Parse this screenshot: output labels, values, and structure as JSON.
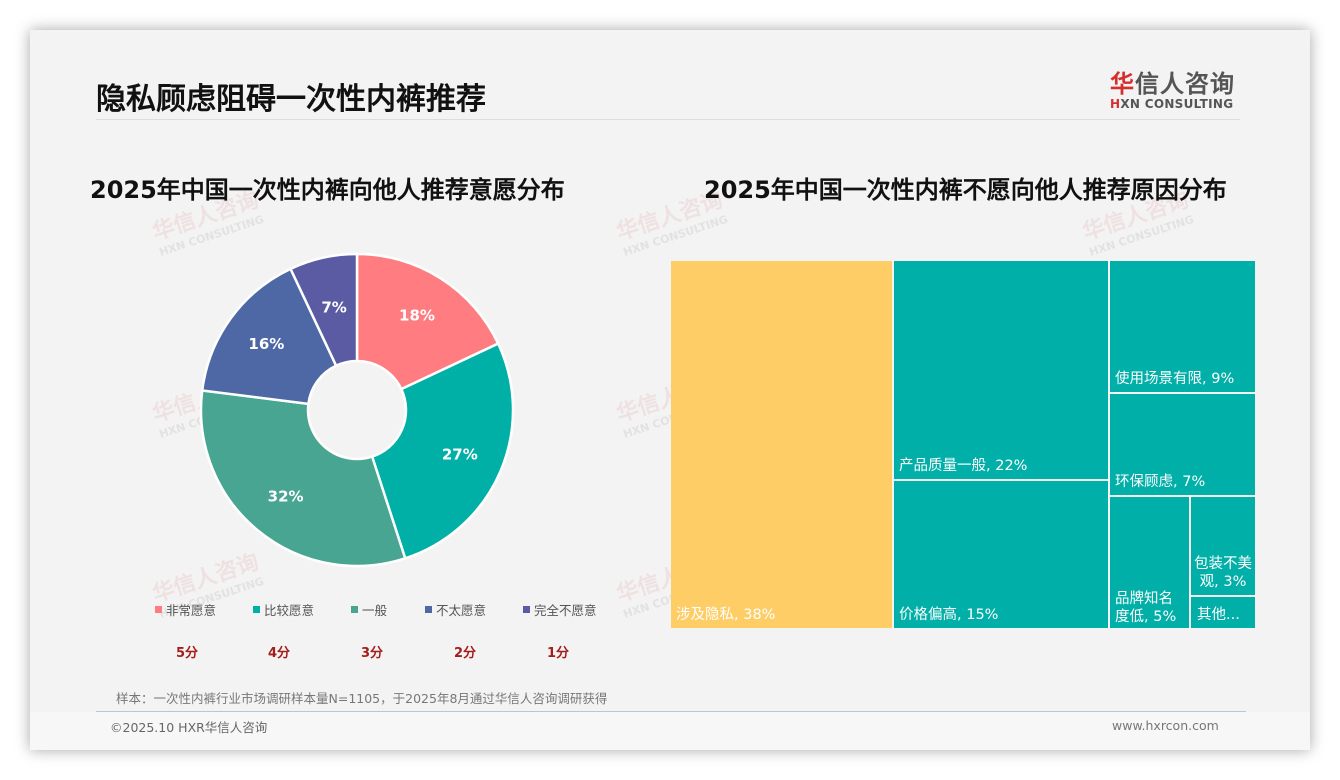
{
  "slide": {
    "title": "隐私顾虑阻碍一次性内裤推荐",
    "logo": {
      "cn_accent": "华",
      "cn_rest": "信人咨询",
      "en_accent": "H",
      "en_rest": "XN CONSULTING"
    },
    "watermark": {
      "cn": "华信人咨询",
      "en": "HXN CONSULTING"
    },
    "note": "样本：一次性内裤行业市场调研样本量N=1105，于2025年8月通过华信人咨询调研获得",
    "footer_left": "©2025.10 HXR华信人咨询",
    "footer_right": "www.hxrcon.com"
  },
  "chart_data": [
    {
      "type": "pie",
      "donut": true,
      "title": "2025年中国一次性内裤向他人推荐意愿分布",
      "categories": [
        "非常愿意",
        "比较愿意",
        "一般",
        "不太愿意",
        "完全不愿意"
      ],
      "values": [
        18,
        27,
        32,
        16,
        7
      ],
      "labels": [
        "18%",
        "27%",
        "32%",
        "16%",
        "7%"
      ],
      "colors": [
        "#FF7C80",
        "#00AFA5",
        "#47A592",
        "#4D68A5",
        "#5B5BA3"
      ],
      "scores": [
        "5分",
        "4分",
        "3分",
        "2分",
        "1分"
      ],
      "legend_position": "bottom"
    },
    {
      "type": "treemap",
      "title": "2025年中国一次性内裤不愿向他人推荐原因分布",
      "categories": [
        "涉及隐私",
        "产品质量一般",
        "价格偏高",
        "使用场景有限",
        "环保顾虑",
        "品牌知名度低",
        "包装不美观",
        "其他"
      ],
      "values": [
        38,
        22,
        15,
        9,
        7,
        5,
        3,
        1
      ],
      "labels": [
        "涉及隐私, 38%",
        "产品质量一般, 22%",
        "价格偏高, 15%",
        "使用场景有限, 9%",
        "环保顾虑, 7%",
        "品牌知名度低, 5%",
        "包装不美观, 3%",
        "其他..."
      ],
      "colors": {
        "highlight": "#FFCD66",
        "default": "#00AFA8"
      }
    }
  ]
}
